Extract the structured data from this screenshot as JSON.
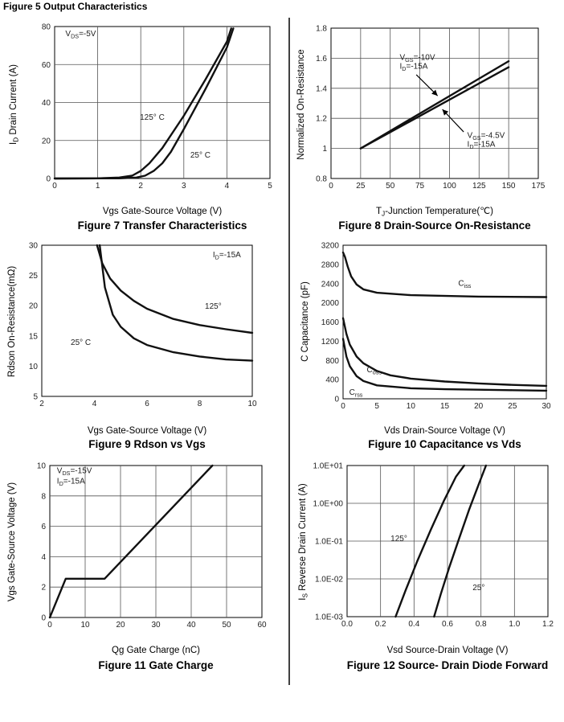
{
  "page": {
    "header": "Figure 5 Output Characteristics"
  },
  "chart_data": [
    {
      "id": "transfer",
      "type": "line",
      "title": "Figure 7 Transfer Characteristics",
      "xlabel": "Vgs Gate-Source Voltage (V)",
      "ylabel": "I_D Drain Current (A)",
      "xlim": [
        0,
        5
      ],
      "ylim": [
        0,
        80
      ],
      "xticks": [
        0,
        1,
        2,
        3,
        4,
        5
      ],
      "yticks": [
        0,
        20,
        40,
        60,
        80
      ],
      "grid": true,
      "annotations": [
        {
          "text": "V_DS=-5V",
          "x": 0.25,
          "y": 75
        },
        {
          "text": "125° C",
          "x": 1.98,
          "y": 31
        },
        {
          "text": "25° C",
          "x": 3.15,
          "y": 11
        }
      ],
      "series": [
        {
          "name": "125° C",
          "x": [
            0,
            1,
            1.5,
            1.8,
            2.0,
            2.2,
            2.5,
            3.0,
            3.5,
            4.0,
            4.1
          ],
          "y": [
            0,
            0.1,
            0.5,
            1.5,
            4,
            8,
            16,
            33,
            52,
            72,
            79
          ]
        },
        {
          "name": "25° C",
          "x": [
            0,
            1.5,
            1.9,
            2.1,
            2.3,
            2.5,
            2.7,
            3.0,
            3.5,
            4.0,
            4.15
          ],
          "y": [
            0,
            0.1,
            0.5,
            1.5,
            4,
            8,
            14,
            26,
            47,
            69,
            79
          ]
        }
      ]
    },
    {
      "id": "onres",
      "type": "line",
      "title": "Figure 8 Drain-Source On-Resistance",
      "xlabel": "T_J-Junction Temperature(℃)",
      "ylabel": "Normalized On-Resistance",
      "xlim": [
        0,
        175
      ],
      "ylim": [
        0.8,
        1.8
      ],
      "xticks": [
        0,
        25,
        50,
        75,
        100,
        125,
        150,
        175
      ],
      "yticks": [
        0.8,
        1,
        1.2,
        1.4,
        1.6,
        1.8
      ],
      "grid": true,
      "annotations": [
        {
          "text": "V_GS=-10V",
          "x": 58,
          "y": 1.59
        },
        {
          "text": "I_D=-15A",
          "x": 58,
          "y": 1.53
        },
        {
          "text": "V_GS=-4.5V",
          "x": 115,
          "y": 1.07
        },
        {
          "text": "I_D=-15A",
          "x": 115,
          "y": 1.01
        }
      ],
      "series": [
        {
          "name": "V_GS=-10V",
          "x": [
            25,
            150
          ],
          "y": [
            1.0,
            1.58
          ]
        },
        {
          "name": "V_GS=-4.5V",
          "x": [
            25,
            150
          ],
          "y": [
            1.0,
            1.54
          ]
        }
      ]
    },
    {
      "id": "rdson",
      "type": "line",
      "title": "Figure 9 Rdson vs Vgs",
      "xlabel": "Vgs Gate-Source Voltage (V)",
      "ylabel": "Rdson On-Resistance(mΩ)",
      "xlim": [
        2,
        10
      ],
      "ylim": [
        5,
        30
      ],
      "xticks": [
        2,
        4,
        6,
        8,
        10
      ],
      "yticks": [
        5,
        10,
        15,
        20,
        25,
        30
      ],
      "grid": false,
      "annotations": [
        {
          "text": "I_D=-15A",
          "x": 8.5,
          "y": 28
        },
        {
          "text": "125°",
          "x": 8.2,
          "y": 19.5
        },
        {
          "text": "25° C",
          "x": 3.1,
          "y": 13.5
        }
      ],
      "series": [
        {
          "name": "125°",
          "x": [
            4.1,
            4.3,
            4.6,
            5,
            5.5,
            6,
            7,
            8,
            9,
            10
          ],
          "y": [
            30,
            27,
            24.5,
            22.5,
            20.8,
            19.5,
            17.8,
            16.8,
            16.1,
            15.5
          ]
        },
        {
          "name": "25° C",
          "x": [
            4.2,
            4.4,
            4.7,
            5,
            5.5,
            6,
            7,
            8,
            9,
            10
          ],
          "y": [
            30,
            23,
            18.5,
            16.5,
            14.6,
            13.5,
            12.3,
            11.6,
            11.1,
            10.9
          ]
        }
      ]
    },
    {
      "id": "capacitance",
      "type": "line",
      "title": "Figure 10 Capacitance vs Vds",
      "xlabel": "Vds Drain-Source Voltage (V)",
      "ylabel": "C Capacitance (pF)",
      "xlim": [
        0,
        30
      ],
      "ylim": [
        0,
        3200
      ],
      "xticks": [
        0,
        5,
        10,
        15,
        20,
        25,
        30
      ],
      "yticks": [
        0,
        400,
        800,
        1200,
        1600,
        2000,
        2400,
        2800,
        3200
      ],
      "grid": false,
      "annotations": [
        {
          "text": "C_iss",
          "x": 17,
          "y": 2350
        },
        {
          "text": "C_oss",
          "x": 3.5,
          "y": 550
        },
        {
          "text": "C_rss",
          "x": 0.9,
          "y": 80
        }
      ],
      "series": [
        {
          "name": "C_iss",
          "x": [
            0,
            0.3,
            0.7,
            1.2,
            2,
            3,
            5,
            10,
            20,
            30
          ],
          "y": [
            3050,
            2950,
            2750,
            2550,
            2380,
            2280,
            2210,
            2160,
            2130,
            2120
          ]
        },
        {
          "name": "C_oss",
          "x": [
            0,
            0.5,
            1,
            2,
            3,
            5,
            7,
            10,
            15,
            20,
            25,
            30
          ],
          "y": [
            1680,
            1350,
            1130,
            880,
            740,
            580,
            490,
            420,
            360,
            320,
            290,
            270
          ]
        },
        {
          "name": "C_rss",
          "x": [
            0,
            0.5,
            1,
            2,
            3,
            5,
            10,
            15,
            20,
            25,
            30
          ],
          "y": [
            1250,
            880,
            680,
            470,
            370,
            280,
            220,
            200,
            190,
            180,
            170
          ]
        }
      ]
    },
    {
      "id": "gatecharge",
      "type": "line",
      "title": "Figure 11 Gate Charge",
      "xlabel": "Qg Gate Charge (nC)",
      "ylabel": "Vgs Gate-Source Voltage (V)",
      "xlim": [
        0,
        60
      ],
      "ylim": [
        0,
        10
      ],
      "xticks": [
        0,
        10,
        20,
        30,
        40,
        50,
        60
      ],
      "yticks": [
        0,
        2,
        4,
        6,
        8,
        10
      ],
      "grid": true,
      "annotations": [
        {
          "text": "V_DS=-15V",
          "x": 2,
          "y": 9.5
        },
        {
          "text": "I_D=-15A",
          "x": 2,
          "y": 8.8
        }
      ],
      "series": [
        {
          "name": "Vgs",
          "x": [
            0,
            4.5,
            15.5,
            46
          ],
          "y": [
            0,
            2.55,
            2.55,
            10
          ]
        }
      ]
    },
    {
      "id": "diode",
      "type": "line",
      "title": "Figure 12 Source- Drain Diode Forward",
      "xlabel": "Vsd Source-Drain Voltage (V)",
      "ylabel": "I_S Reverse Drain Current (A)",
      "xlim": [
        0.0,
        1.2
      ],
      "ylim": [
        0.001,
        10
      ],
      "yscale": "log",
      "xticks": [
        0.0,
        0.2,
        0.4,
        0.6,
        0.8,
        1.0,
        1.2
      ],
      "xtick_labels": [
        "0.0",
        "0.2",
        "0.4",
        "0.6",
        "0.8",
        "1.0",
        "1.2"
      ],
      "yticks": [
        0.001,
        0.01,
        0.1,
        1,
        10
      ],
      "ytick_labels": [
        "1.0E-03",
        "1.0E-02",
        "1.0E-01",
        "1.0E+00",
        "1.0E+01"
      ],
      "grid": true,
      "annotations": [
        {
          "text": "125°",
          "x": 0.26,
          "y": 0.1
        },
        {
          "text": "25°",
          "x": 0.75,
          "y": 0.005
        }
      ],
      "series": [
        {
          "name": "125°",
          "x": [
            0.29,
            0.35,
            0.42,
            0.5,
            0.58,
            0.65,
            0.7
          ],
          "y": [
            0.001,
            0.005,
            0.03,
            0.2,
            1.2,
            5,
            10
          ]
        },
        {
          "name": "25°",
          "x": [
            0.52,
            0.56,
            0.61,
            0.67,
            0.73,
            0.79,
            0.83
          ],
          "y": [
            0.001,
            0.004,
            0.02,
            0.12,
            0.7,
            3.5,
            10
          ]
        }
      ]
    }
  ]
}
